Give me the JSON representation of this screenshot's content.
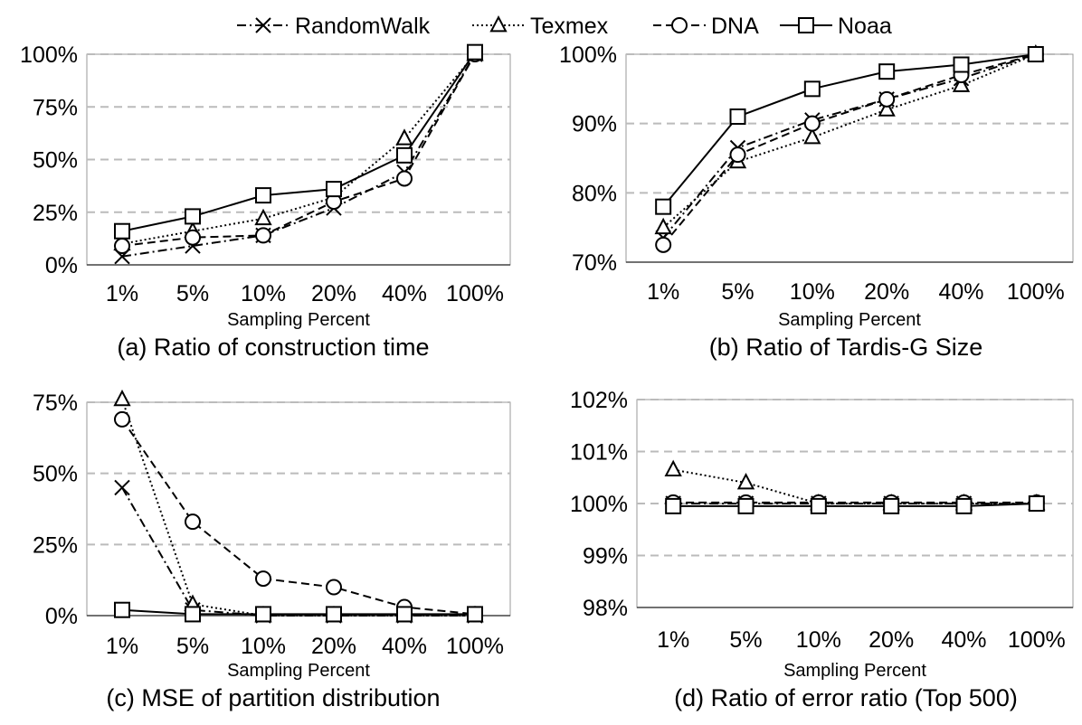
{
  "legend": [
    {
      "name": "RandomWalk",
      "marker": "x",
      "dash": "dashdot"
    },
    {
      "name": "Texmex",
      "marker": "triangle",
      "dash": "dotted"
    },
    {
      "name": "DNA",
      "marker": "circle",
      "dash": "dashed"
    },
    {
      "name": "Noaa",
      "marker": "square",
      "dash": "solid"
    }
  ],
  "colors": {
    "line": "#000000",
    "grid": "#bbbbbb",
    "axis_box": "#999999"
  },
  "chart_data": [
    {
      "type": "line",
      "caption": "(a) Ratio of construction time",
      "xlabel": "Sampling Percent",
      "ylabel": "",
      "categories": [
        "1%",
        "5%",
        "10%",
        "20%",
        "40%",
        "100%"
      ],
      "yticks": [
        "0%",
        "25%",
        "50%",
        "75%",
        "100%"
      ],
      "ylim": [
        0,
        100
      ],
      "grid": true,
      "series": [
        {
          "name": "RandomWalk",
          "values": [
            4,
            9,
            14,
            27,
            44,
            100
          ]
        },
        {
          "name": "Texmex",
          "values": [
            10,
            16,
            22,
            32,
            60,
            100
          ]
        },
        {
          "name": "DNA",
          "values": [
            9,
            13,
            14,
            30,
            41,
            100
          ]
        },
        {
          "name": "Noaa",
          "values": [
            16,
            23,
            33,
            36,
            52,
            101
          ]
        }
      ]
    },
    {
      "type": "line",
      "caption": "(b) Ratio of Tardis-G Size",
      "xlabel": "Sampling Percent",
      "ylabel": "",
      "categories": [
        "1%",
        "5%",
        "10%",
        "20%",
        "40%",
        "100%"
      ],
      "yticks": [
        "70%",
        "80%",
        "90%",
        "100%"
      ],
      "ylim": [
        70,
        100
      ],
      "grid": true,
      "series": [
        {
          "name": "RandomWalk",
          "values": [
            73.5,
            86.5,
            90.5,
            93.5,
            96.5,
            100
          ]
        },
        {
          "name": "Texmex",
          "values": [
            75,
            84.5,
            88,
            92,
            95.5,
            100
          ]
        },
        {
          "name": "DNA",
          "values": [
            72.5,
            85.5,
            90,
            93.5,
            97,
            100
          ]
        },
        {
          "name": "Noaa",
          "values": [
            78,
            91,
            95,
            97.5,
            98.5,
            100
          ]
        }
      ]
    },
    {
      "type": "line",
      "caption": "(c) MSE of partition distribution",
      "xlabel": "Sampling Percent",
      "ylabel": "",
      "categories": [
        "1%",
        "5%",
        "10%",
        "20%",
        "40%",
        "100%"
      ],
      "yticks": [
        "0%",
        "25%",
        "50%",
        "75%"
      ],
      "ylim": [
        0,
        75
      ],
      "grid": true,
      "series": [
        {
          "name": "RandomWalk",
          "values": [
            45,
            2,
            0,
            0,
            0,
            0
          ]
        },
        {
          "name": "Texmex",
          "values": [
            76,
            4,
            0,
            0,
            0,
            0
          ]
        },
        {
          "name": "DNA",
          "values": [
            69,
            33,
            13,
            10,
            3,
            0.5
          ]
        },
        {
          "name": "Noaa",
          "values": [
            2,
            0.5,
            0.5,
            0.5,
            0.5,
            0.5
          ]
        }
      ]
    },
    {
      "type": "line",
      "caption": "(d) Ratio of error ratio (Top 500)",
      "xlabel": "Sampling Percent",
      "ylabel": "",
      "categories": [
        "1%",
        "5%",
        "10%",
        "20%",
        "40%",
        "100%"
      ],
      "yticks": [
        "98%",
        "99%",
        "100%",
        "101%",
        "102%"
      ],
      "ylim": [
        98,
        102
      ],
      "grid": true,
      "series": [
        {
          "name": "RandomWalk",
          "values": [
            100,
            100,
            100,
            100,
            100,
            100
          ]
        },
        {
          "name": "Texmex",
          "values": [
            100.65,
            100.4,
            100,
            100,
            100,
            100
          ]
        },
        {
          "name": "DNA",
          "values": [
            100.02,
            100.02,
            100.02,
            100.02,
            100.02,
            100.02
          ]
        },
        {
          "name": "Noaa",
          "values": [
            99.95,
            99.95,
            99.95,
            99.95,
            99.95,
            100
          ]
        }
      ]
    }
  ]
}
